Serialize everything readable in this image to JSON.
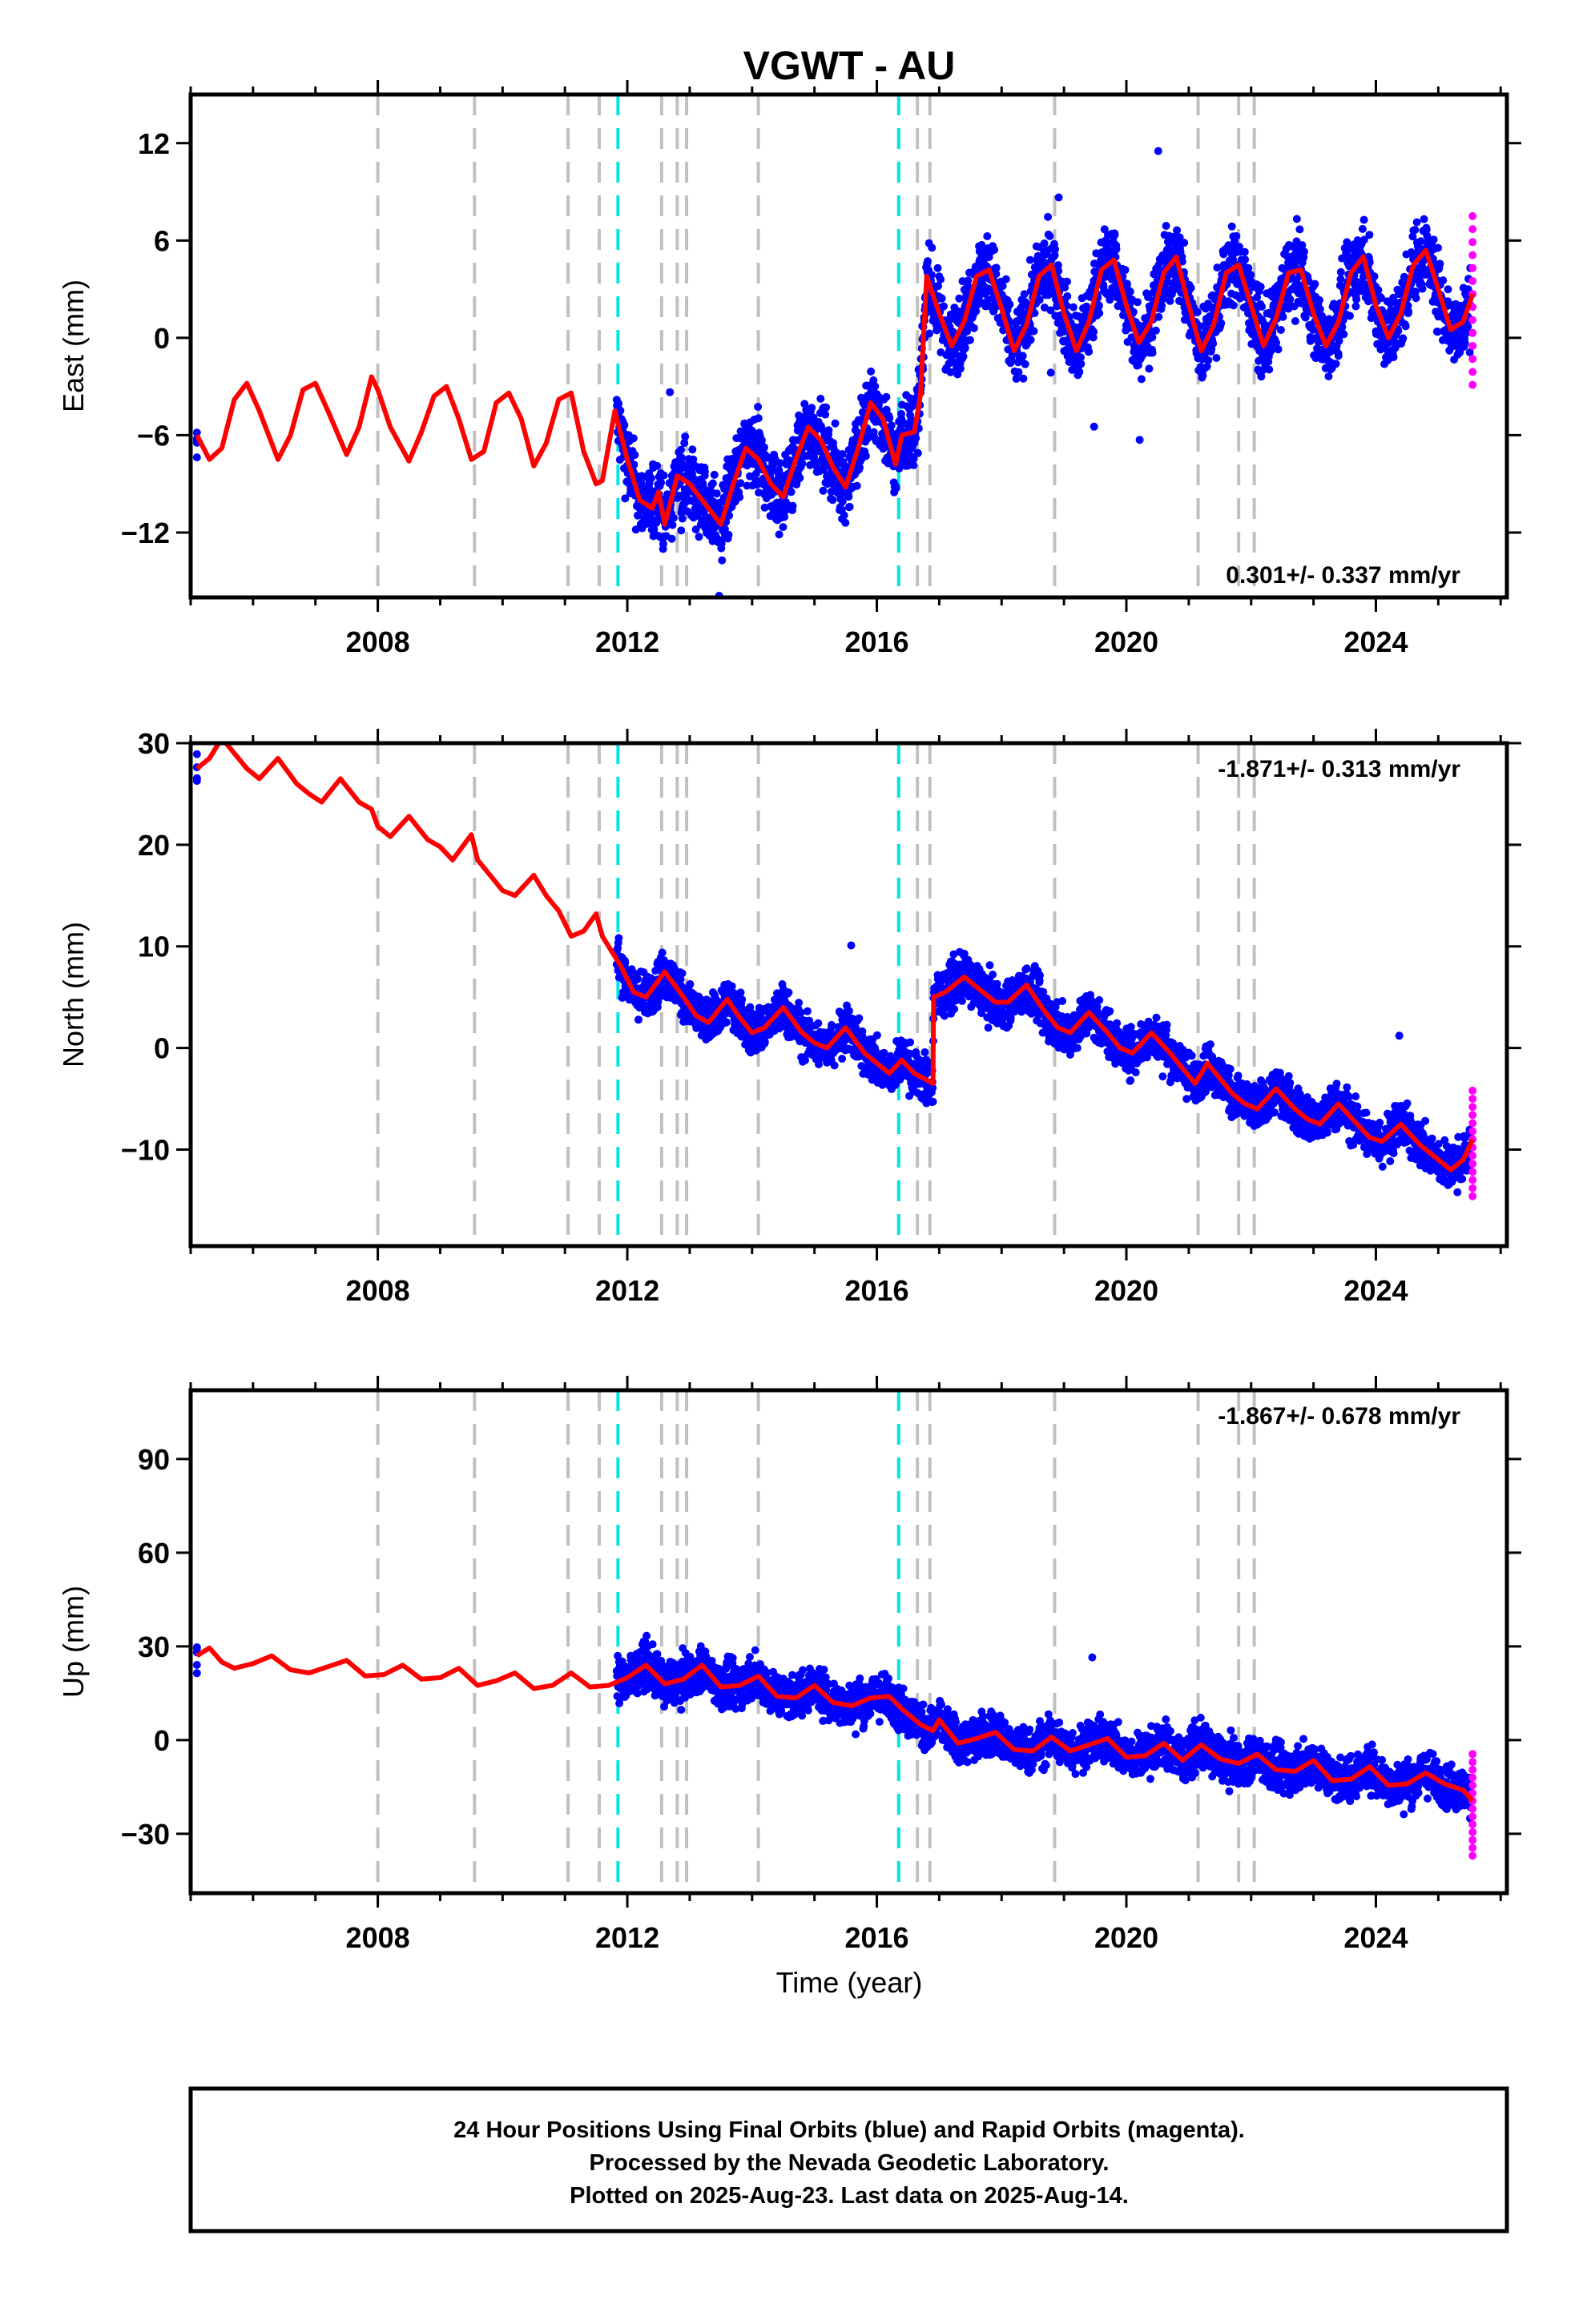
{
  "title": "VGWT - AU",
  "x_axis_label": "Time (year)",
  "footer_lines": [
    "24 Hour Positions Using Final Orbits (blue) and Rapid Orbits (magenta).",
    "Processed by the Nevada Geodetic Laboratory.",
    "Plotted on 2025-Aug-23. Last data on 2025-Aug-14."
  ],
  "colors": {
    "final_orbits": "#0000ff",
    "rapid_orbits": "#ff00ff",
    "model": "#ff0000",
    "equipment_change": "#c0c0c0",
    "earthquake": "#00e5e5"
  },
  "chart_data": [
    {
      "type": "scatter",
      "component": "east",
      "ylabel": "East (mm)",
      "ylim": [
        -16,
        15
      ],
      "xlim": [
        2005.0,
        2026.1
      ],
      "x_ticks": [
        2008,
        2012,
        2016,
        2020,
        2024
      ],
      "y_ticks": [
        -12,
        -6,
        0,
        6,
        12
      ],
      "rate_label": "0.301+/- 0.337 mm/yr",
      "rate_position": "bottom-right",
      "model_points": [
        [
          2005.1,
          -6.0
        ],
        [
          2005.3,
          -7.5
        ],
        [
          2005.5,
          -6.8
        ],
        [
          2005.7,
          -3.8
        ],
        [
          2005.9,
          -2.8
        ],
        [
          2006.1,
          -4.5
        ],
        [
          2006.4,
          -7.5
        ],
        [
          2006.6,
          -6.0
        ],
        [
          2006.8,
          -3.2
        ],
        [
          2007.0,
          -2.8
        ],
        [
          2007.2,
          -4.5
        ],
        [
          2007.5,
          -7.2
        ],
        [
          2007.7,
          -5.5
        ],
        [
          2007.9,
          -2.4
        ],
        [
          2008.0,
          -3.2
        ],
        [
          2008.2,
          -5.5
        ],
        [
          2008.5,
          -7.6
        ],
        [
          2008.7,
          -5.8
        ],
        [
          2008.9,
          -3.6
        ],
        [
          2009.1,
          -3.0
        ],
        [
          2009.3,
          -5.0
        ],
        [
          2009.5,
          -7.5
        ],
        [
          2009.7,
          -7.0
        ],
        [
          2009.9,
          -4.0
        ],
        [
          2010.1,
          -3.4
        ],
        [
          2010.3,
          -5.0
        ],
        [
          2010.5,
          -7.9
        ],
        [
          2010.7,
          -6.5
        ],
        [
          2010.9,
          -3.8
        ],
        [
          2011.1,
          -3.4
        ],
        [
          2011.3,
          -7.0
        ],
        [
          2011.5,
          -9.0
        ],
        [
          2011.6,
          -8.8
        ],
        [
          2011.8,
          -4.5
        ],
        [
          2012.0,
          -7.5
        ],
        [
          2012.2,
          -10.0
        ],
        [
          2012.4,
          -10.5
        ],
        [
          2012.5,
          -9.5
        ],
        [
          2012.6,
          -11.5
        ],
        [
          2012.8,
          -8.5
        ],
        [
          2013.0,
          -9.0
        ],
        [
          2013.2,
          -10.0
        ],
        [
          2013.5,
          -11.5
        ],
        [
          2013.7,
          -9.0
        ],
        [
          2013.9,
          -6.8
        ],
        [
          2014.1,
          -7.5
        ],
        [
          2014.3,
          -9.0
        ],
        [
          2014.5,
          -9.8
        ],
        [
          2014.7,
          -7.5
        ],
        [
          2014.9,
          -5.5
        ],
        [
          2015.1,
          -6.3
        ],
        [
          2015.3,
          -8.0
        ],
        [
          2015.5,
          -9.2
        ],
        [
          2015.7,
          -6.8
        ],
        [
          2015.9,
          -4.0
        ],
        [
          2016.1,
          -5.0
        ],
        [
          2016.3,
          -7.8
        ],
        [
          2016.4,
          -6.0
        ],
        [
          2016.6,
          -5.8
        ],
        [
          2016.7,
          -3.5
        ],
        [
          2016.8,
          3.8
        ],
        [
          2017.0,
          1.5
        ],
        [
          2017.2,
          -0.5
        ],
        [
          2017.4,
          1.0
        ],
        [
          2017.6,
          3.8
        ],
        [
          2017.8,
          4.2
        ],
        [
          2018.0,
          1.8
        ],
        [
          2018.2,
          -0.8
        ],
        [
          2018.4,
          0.8
        ],
        [
          2018.6,
          3.8
        ],
        [
          2018.8,
          4.5
        ],
        [
          2019.0,
          1.5
        ],
        [
          2019.2,
          -0.8
        ],
        [
          2019.4,
          1.0
        ],
        [
          2019.6,
          4.2
        ],
        [
          2019.8,
          4.8
        ],
        [
          2020.0,
          2.0
        ],
        [
          2020.2,
          -0.3
        ],
        [
          2020.4,
          1.0
        ],
        [
          2020.6,
          4.0
        ],
        [
          2020.8,
          5.0
        ],
        [
          2021.0,
          2.0
        ],
        [
          2021.2,
          -0.8
        ],
        [
          2021.4,
          0.8
        ],
        [
          2021.6,
          4.0
        ],
        [
          2021.8,
          4.5
        ],
        [
          2022.0,
          2.0
        ],
        [
          2022.2,
          -0.5
        ],
        [
          2022.4,
          1.2
        ],
        [
          2022.6,
          4.0
        ],
        [
          2022.8,
          4.2
        ],
        [
          2023.0,
          1.5
        ],
        [
          2023.2,
          -0.5
        ],
        [
          2023.4,
          1.0
        ],
        [
          2023.6,
          4.0
        ],
        [
          2023.8,
          5.0
        ],
        [
          2024.0,
          2.0
        ],
        [
          2024.2,
          0.0
        ],
        [
          2024.4,
          1.5
        ],
        [
          2024.6,
          4.5
        ],
        [
          2024.8,
          5.4
        ],
        [
          2025.0,
          3.0
        ],
        [
          2025.2,
          0.5
        ],
        [
          2025.4,
          1.0
        ],
        [
          2025.55,
          2.7
        ]
      ]
    },
    {
      "type": "scatter",
      "component": "north",
      "ylabel": "North (mm)",
      "ylim": [
        -19.5,
        30
      ],
      "xlim": [
        2005.0,
        2026.1
      ],
      "x_ticks": [
        2008,
        2012,
        2016,
        2020,
        2024
      ],
      "y_ticks": [
        -10,
        0,
        10,
        20,
        30
      ],
      "rate_label": "-1.871+/- 0.313 mm/yr",
      "rate_position": "top-right",
      "model_points": [
        [
          2005.1,
          27.5
        ],
        [
          2005.3,
          28.5
        ],
        [
          2005.5,
          30.5
        ],
        [
          2005.7,
          29.0
        ],
        [
          2005.9,
          27.5
        ],
        [
          2006.1,
          26.5
        ],
        [
          2006.4,
          28.5
        ],
        [
          2006.7,
          26.0
        ],
        [
          2006.9,
          25.0
        ],
        [
          2007.1,
          24.2
        ],
        [
          2007.4,
          26.5
        ],
        [
          2007.7,
          24.2
        ],
        [
          2007.9,
          23.5
        ],
        [
          2008.0,
          21.8
        ],
        [
          2008.2,
          20.8
        ],
        [
          2008.5,
          22.8
        ],
        [
          2008.8,
          20.5
        ],
        [
          2009.0,
          19.8
        ],
        [
          2009.2,
          18.5
        ],
        [
          2009.5,
          21.0
        ],
        [
          2009.6,
          18.5
        ],
        [
          2009.8,
          17.0
        ],
        [
          2010.0,
          15.5
        ],
        [
          2010.2,
          15.0
        ],
        [
          2010.5,
          17.0
        ],
        [
          2010.7,
          15.0
        ],
        [
          2010.9,
          13.5
        ],
        [
          2011.1,
          11.0
        ],
        [
          2011.3,
          11.5
        ],
        [
          2011.5,
          13.2
        ],
        [
          2011.6,
          11.0
        ],
        [
          2011.9,
          8.0
        ],
        [
          2012.1,
          5.5
        ],
        [
          2012.3,
          5.0
        ],
        [
          2012.6,
          7.5
        ],
        [
          2012.9,
          5.0
        ],
        [
          2013.1,
          3.2
        ],
        [
          2013.3,
          2.5
        ],
        [
          2013.6,
          4.8
        ],
        [
          2013.8,
          3.0
        ],
        [
          2014.0,
          1.5
        ],
        [
          2014.2,
          2.0
        ],
        [
          2014.5,
          4.0
        ],
        [
          2014.8,
          1.5
        ],
        [
          2015.0,
          0.5
        ],
        [
          2015.2,
          0.0
        ],
        [
          2015.5,
          2.0
        ],
        [
          2015.8,
          -0.5
        ],
        [
          2016.0,
          -1.5
        ],
        [
          2016.2,
          -2.5
        ],
        [
          2016.4,
          -1.2
        ],
        [
          2016.6,
          -2.5
        ],
        [
          2016.9,
          -3.5
        ],
        [
          2016.91,
          5.0
        ],
        [
          2017.1,
          5.5
        ],
        [
          2017.4,
          7.0
        ],
        [
          2017.7,
          5.5
        ],
        [
          2017.9,
          4.5
        ],
        [
          2018.1,
          4.5
        ],
        [
          2018.4,
          6.2
        ],
        [
          2018.7,
          3.5
        ],
        [
          2018.9,
          2.0
        ],
        [
          2019.1,
          1.5
        ],
        [
          2019.4,
          3.5
        ],
        [
          2019.7,
          1.5
        ],
        [
          2019.9,
          0.0
        ],
        [
          2020.1,
          -0.5
        ],
        [
          2020.4,
          1.5
        ],
        [
          2020.7,
          -0.5
        ],
        [
          2020.9,
          -2.0
        ],
        [
          2021.1,
          -3.5
        ],
        [
          2021.3,
          -1.5
        ],
        [
          2021.5,
          -3.0
        ],
        [
          2021.7,
          -4.5
        ],
        [
          2021.9,
          -5.5
        ],
        [
          2022.1,
          -6.0
        ],
        [
          2022.4,
          -4.0
        ],
        [
          2022.7,
          -6.0
        ],
        [
          2022.9,
          -7.0
        ],
        [
          2023.1,
          -7.5
        ],
        [
          2023.4,
          -5.5
        ],
        [
          2023.7,
          -7.5
        ],
        [
          2023.9,
          -8.8
        ],
        [
          2024.1,
          -9.2
        ],
        [
          2024.4,
          -7.5
        ],
        [
          2024.7,
          -9.5
        ],
        [
          2024.9,
          -10.5
        ],
        [
          2025.2,
          -12.0
        ],
        [
          2025.4,
          -11.0
        ],
        [
          2025.55,
          -9.0
        ]
      ]
    },
    {
      "type": "scatter",
      "component": "up",
      "ylabel": "Up (mm)",
      "ylim": [
        -49,
        112
      ],
      "xlim": [
        2005.0,
        2026.1
      ],
      "x_ticks": [
        2008,
        2012,
        2016,
        2020,
        2024
      ],
      "y_ticks": [
        -30,
        0,
        30,
        60,
        90
      ],
      "rate_label": "-1.867+/- 0.678 mm/yr",
      "rate_position": "top-right",
      "model_points": [
        [
          2005.1,
          27.0
        ],
        [
          2005.3,
          29.5
        ],
        [
          2005.5,
          25.0
        ],
        [
          2005.7,
          23.0
        ],
        [
          2006.0,
          24.5
        ],
        [
          2006.3,
          27.0
        ],
        [
          2006.6,
          22.5
        ],
        [
          2006.9,
          21.5
        ],
        [
          2007.2,
          23.5
        ],
        [
          2007.5,
          25.5
        ],
        [
          2007.8,
          20.5
        ],
        [
          2008.1,
          21.0
        ],
        [
          2008.4,
          24.0
        ],
        [
          2008.7,
          19.5
        ],
        [
          2009.0,
          20.0
        ],
        [
          2009.3,
          23.0
        ],
        [
          2009.6,
          17.5
        ],
        [
          2009.9,
          19.0
        ],
        [
          2010.2,
          21.5
        ],
        [
          2010.5,
          16.5
        ],
        [
          2010.8,
          17.5
        ],
        [
          2011.1,
          21.5
        ],
        [
          2011.4,
          17.0
        ],
        [
          2011.7,
          17.5
        ],
        [
          2012.0,
          20.0
        ],
        [
          2012.3,
          24.0
        ],
        [
          2012.6,
          18.0
        ],
        [
          2012.9,
          19.5
        ],
        [
          2013.2,
          24.0
        ],
        [
          2013.5,
          17.0
        ],
        [
          2013.8,
          17.5
        ],
        [
          2014.1,
          20.5
        ],
        [
          2014.4,
          14.0
        ],
        [
          2014.7,
          13.5
        ],
        [
          2015.0,
          17.5
        ],
        [
          2015.3,
          12.0
        ],
        [
          2015.6,
          11.0
        ],
        [
          2015.9,
          13.5
        ],
        [
          2016.2,
          14.0
        ],
        [
          2016.4,
          10.0
        ],
        [
          2016.7,
          5.0
        ],
        [
          2016.9,
          3.0
        ],
        [
          2017.0,
          6.5
        ],
        [
          2017.3,
          -1.0
        ],
        [
          2017.6,
          0.5
        ],
        [
          2017.9,
          2.5
        ],
        [
          2018.2,
          -3.0
        ],
        [
          2018.5,
          -3.5
        ],
        [
          2018.8,
          1.0
        ],
        [
          2019.1,
          -3.5
        ],
        [
          2019.4,
          -1.5
        ],
        [
          2019.7,
          0.5
        ],
        [
          2020.0,
          -5.5
        ],
        [
          2020.3,
          -5.0
        ],
        [
          2020.6,
          -1.0
        ],
        [
          2020.9,
          -6.5
        ],
        [
          2021.2,
          -1.5
        ],
        [
          2021.5,
          -6.0
        ],
        [
          2021.8,
          -7.5
        ],
        [
          2022.1,
          -4.5
        ],
        [
          2022.4,
          -9.5
        ],
        [
          2022.7,
          -10.0
        ],
        [
          2023.0,
          -6.5
        ],
        [
          2023.3,
          -13.0
        ],
        [
          2023.6,
          -12.5
        ],
        [
          2023.9,
          -8.5
        ],
        [
          2024.2,
          -14.5
        ],
        [
          2024.5,
          -14.0
        ],
        [
          2024.8,
          -10.5
        ],
        [
          2025.1,
          -14.0
        ],
        [
          2025.4,
          -16.0
        ],
        [
          2025.55,
          -19.5
        ]
      ]
    }
  ],
  "equipment_change_years": [
    2008.0,
    2009.55,
    2011.05,
    2011.55,
    2012.55,
    2012.8,
    2012.95,
    2014.1,
    2016.65,
    2016.85,
    2018.85,
    2021.15,
    2021.8,
    2022.05
  ],
  "earthquake_years": [
    2011.85,
    2016.35
  ]
}
